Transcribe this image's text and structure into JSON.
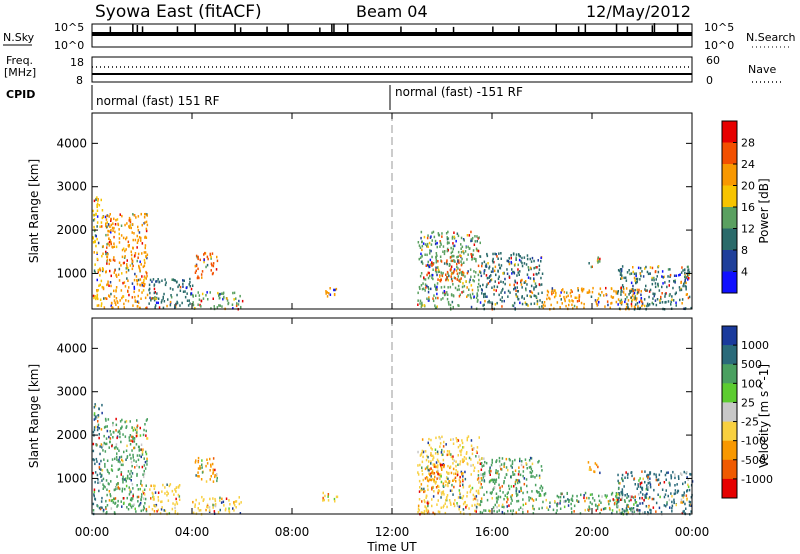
{
  "header": {
    "station": "Syowa East (fitACF)",
    "beam": "Beam 04",
    "date": "12/May/2012"
  },
  "panels": {
    "nsky": {
      "left_label": "N.Sky",
      "right_label": "N.Search",
      "left_ticks": [
        "10^5",
        "10^0"
      ],
      "right_ticks": [
        "10^5",
        "10^0"
      ]
    },
    "freq": {
      "left_label_line1": "Freq.",
      "left_label_line2": "[MHz]",
      "right_label": "Nave",
      "left_ticks": [
        "18",
        "8"
      ],
      "right_ticks": [
        "60",
        "0"
      ]
    },
    "cpid": {
      "label": "CPID",
      "mode_before": "normal (fast) 151 RF",
      "mode_after": "normal (fast) -151 RF",
      "switch_hour": 12
    }
  },
  "x_axis": {
    "label": "Time UT",
    "ticks": [
      "00:00",
      "04:00",
      "08:00",
      "12:00",
      "16:00",
      "20:00",
      "00:00"
    ]
  },
  "power_panel": {
    "ylabel": "Slant Range [km]",
    "yticks": [
      "1000",
      "2000",
      "3000",
      "4000"
    ],
    "colorbar_label": "Power [dB]",
    "colorbar_ticks": [
      "28",
      "24",
      "20",
      "16",
      "12",
      "8",
      "4"
    ],
    "colors": [
      "#e60000",
      "#f35000",
      "#f89800",
      "#f7c400",
      "#5aa060",
      "#2a6a6a",
      "#1f3f9a",
      "#1010ff"
    ]
  },
  "velocity_panel": {
    "ylabel": "Slant Range [km]",
    "yticks": [
      "1000",
      "2000",
      "3000",
      "4000"
    ],
    "colorbar_label": "Velocity [m s^-1]",
    "colorbar_ticks": [
      "1000",
      "500",
      "100",
      "25",
      "-25",
      "-100",
      "-500",
      "-1000"
    ],
    "colors": [
      "#1a3a9c",
      "#2a6a7a",
      "#4aa060",
      "#5ccc30",
      "#c8c8c8",
      "#f8d040",
      "#f89800",
      "#f05a00",
      "#e60000"
    ]
  },
  "chart_data": [
    {
      "type": "heatmap",
      "title": "Power [dB]",
      "xlabel": "Time UT",
      "ylabel": "Slant Range [km]",
      "xlim": [
        0,
        24
      ],
      "ylim": [
        180,
        4700
      ],
      "zlim": [
        0,
        32
      ],
      "x_ticks": [
        "00:00",
        "04:00",
        "08:00",
        "12:00",
        "16:00",
        "20:00",
        "00:00"
      ],
      "y_ticks": [
        1000,
        2000,
        3000,
        4000
      ],
      "patches": [
        {
          "t0": 0.0,
          "t1": 0.4,
          "r0": 200,
          "r1": 2800,
          "level": 16
        },
        {
          "t0": 0.4,
          "t1": 2.2,
          "r0": 200,
          "r1": 2400,
          "level": 20
        },
        {
          "t0": 2.2,
          "t1": 4.0,
          "r0": 200,
          "r1": 900,
          "level": 8
        },
        {
          "t0": 4.1,
          "t1": 5.0,
          "r0": 900,
          "r1": 1500,
          "level": 24
        },
        {
          "t0": 4.0,
          "t1": 6.0,
          "r0": 200,
          "r1": 600,
          "level": 12
        },
        {
          "t0": 9.2,
          "t1": 9.8,
          "r0": 450,
          "r1": 700,
          "level": 20
        },
        {
          "t0": 13.0,
          "t1": 15.5,
          "r0": 200,
          "r1": 2000,
          "level": 12
        },
        {
          "t0": 13.3,
          "t1": 14.8,
          "r0": 850,
          "r1": 1350,
          "level": 24
        },
        {
          "t0": 15.5,
          "t1": 18.0,
          "r0": 200,
          "r1": 1500,
          "level": 8
        },
        {
          "t0": 18.0,
          "t1": 22.0,
          "r0": 200,
          "r1": 700,
          "level": 20
        },
        {
          "t0": 19.8,
          "t1": 20.3,
          "r0": 1150,
          "r1": 1400,
          "level": 12
        },
        {
          "t0": 21.0,
          "t1": 24.0,
          "r0": 200,
          "r1": 1200,
          "level": 8
        }
      ]
    },
    {
      "type": "heatmap",
      "title": "Velocity [m s^-1]",
      "xlabel": "Time UT",
      "ylabel": "Slant Range [km]",
      "xlim": [
        0,
        24
      ],
      "ylim": [
        180,
        4700
      ],
      "zlim": [
        -1000,
        1000
      ],
      "x_ticks": [
        "00:00",
        "04:00",
        "08:00",
        "12:00",
        "16:00",
        "20:00",
        "00:00"
      ],
      "y_ticks": [
        1000,
        2000,
        3000,
        4000
      ],
      "patches": [
        {
          "t0": 0.0,
          "t1": 0.4,
          "r0": 200,
          "r1": 2800,
          "level": 500
        },
        {
          "t0": 0.4,
          "t1": 2.2,
          "r0": 200,
          "r1": 2400,
          "level": 100
        },
        {
          "t0": 2.2,
          "t1": 3.5,
          "r0": 200,
          "r1": 900,
          "level": -100
        },
        {
          "t0": 4.1,
          "t1": 5.0,
          "r0": 900,
          "r1": 1500,
          "level": -500
        },
        {
          "t0": 4.0,
          "t1": 6.0,
          "r0": 200,
          "r1": 600,
          "level": -100
        },
        {
          "t0": 9.2,
          "t1": 9.8,
          "r0": 450,
          "r1": 700,
          "level": -100
        },
        {
          "t0": 13.0,
          "t1": 15.5,
          "r0": 200,
          "r1": 2000,
          "level": -100
        },
        {
          "t0": 13.3,
          "t1": 14.8,
          "r0": 850,
          "r1": 1350,
          "level": -500
        },
        {
          "t0": 15.5,
          "t1": 18.0,
          "r0": 200,
          "r1": 1500,
          "level": 100
        },
        {
          "t0": 18.0,
          "t1": 22.0,
          "r0": 200,
          "r1": 700,
          "level": 100
        },
        {
          "t0": 19.8,
          "t1": 20.3,
          "r0": 1150,
          "r1": 1400,
          "level": -500
        },
        {
          "t0": 21.0,
          "t1": 24.0,
          "r0": 200,
          "r1": 1200,
          "level": 500
        }
      ]
    }
  ]
}
